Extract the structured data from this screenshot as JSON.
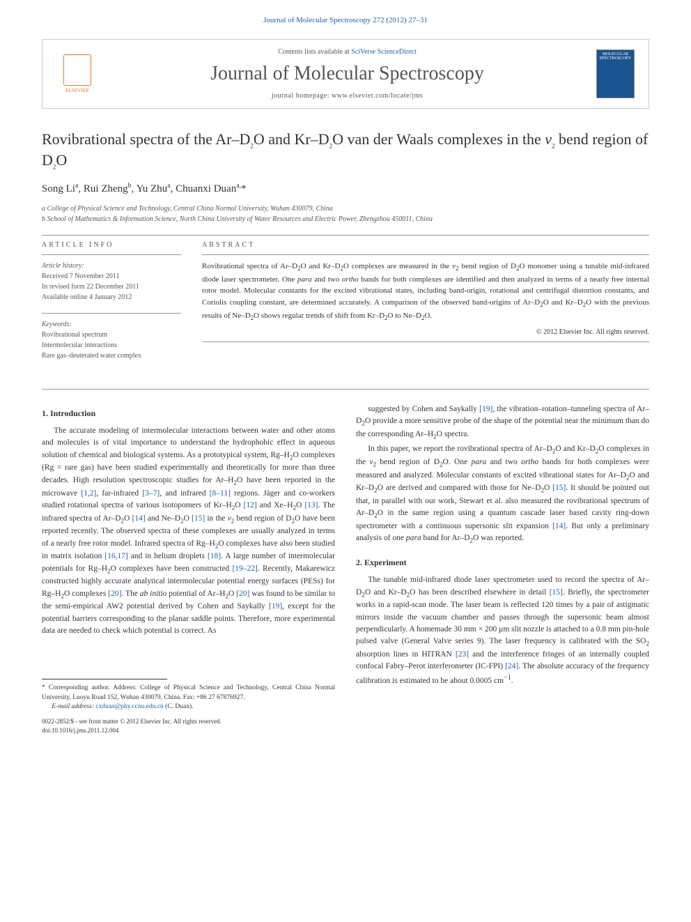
{
  "header": {
    "journal_ref": "Journal of Molecular Spectroscopy 272 (2012) 27–31",
    "contents_prefix": "Contents lists available at ",
    "contents_link": "SciVerse ScienceDirect",
    "journal_name": "Journal of Molecular Spectroscopy",
    "homepage_prefix": "journal homepage: ",
    "homepage_url": "www.elsevier.com/locate/jms",
    "elsevier_label": "ELSEVIER",
    "cover_text": "MOLECULAR SPECTROSCOPY"
  },
  "article": {
    "title_html": "Rovibrational spectra of the Ar–D<sub class='sub'>2</sub>O and Kr–D<sub class='sub'>2</sub>O van der Waals complexes in the <span class='ital'>v</span><sub class='sub'>2</sub> bend region of D<sub class='sub'>2</sub>O",
    "authors_html": "Song Li<sup class='sup'>a</sup>, Rui Zheng<sup class='sup'>b</sup>, Yu Zhu<sup class='sup'>a</sup>, Chuanxi Duan<sup class='sup'>a,</sup>*",
    "affil_a": "a College of Physical Science and Technology, Central China Normal University, Wuhan 430079, China",
    "affil_b": "b School of Mathematics & Information Science, North China University of Water Resources and Electric Power, Zhengzhou 450011, China"
  },
  "meta": {
    "info_heading": "ARTICLE INFO",
    "history_label": "Article history:",
    "received": "Received 7 November 2011",
    "revised": "In revised form 22 December 2011",
    "online": "Available online 4 January 2012",
    "keywords_label": "Keywords:",
    "kw1": "Rovibrational spectrum",
    "kw2": "Intermolecular interactions",
    "kw3": "Rare gas–deuterated water complex"
  },
  "abstract": {
    "heading": "ABSTRACT",
    "text_html": "Rovibrational spectra of Ar–D<sub class='sub'>2</sub>O and Kr–D<sub class='sub'>2</sub>O complexes are measured in the <span class='ital'>v</span><sub class='sub'>2</sub> bend region of D<sub class='sub'>2</sub>O monomer using a tunable mid-infrared diode laser spectrometer. One <span class='ital'>para</span> and two <span class='ital'>ortho</span> bands for both complexes are identified and then analyzed in terms of a nearly free internal rotor model. Molecular constants for the excited vibrational states, including band-origin, rotational and centrifugal distortion constants, and Coriolis coupling constant, are determined accurately. A comparison of the observed band-origins of Ar–D<sub class='sub'>2</sub>O and Kr–D<sub class='sub'>2</sub>O with the previous results of Ne–D<sub class='sub'>2</sub>O shows regular trends of shift from Kr–D<sub class='sub'>2</sub>O to Ne–D<sub class='sub'>2</sub>O.",
    "copyright": "© 2012 Elsevier Inc. All rights reserved."
  },
  "body": {
    "sec1_heading": "1. Introduction",
    "sec1_p1_html": "The accurate modeling of intermolecular interactions between water and other atoms and molecules is of vital importance to understand the hydrophobic effect in aqueous solution of chemical and biological systems. As a prototypical system, Rg–H<sub class='sub'>2</sub>O complexes (Rg = rare gas) have been studied experimentally and theoretically for more than three decades. High resolution spectroscopic studies for Ar–H<sub class='sub'>2</sub>O have been reported in the microwave <span class='ref'>[1,2]</span>, far-infrared <span class='ref'>[3–7]</span>, and infrared <span class='ref'>[8–11]</span> regions. Jäger and co-workers studied rotational spectra of various isotopomers of Kr–H<sub class='sub'>2</sub>O <span class='ref'>[12]</span> and Xe–H<sub class='sub'>2</sub>O <span class='ref'>[13]</span>. The infrared spectra of Ar–D<sub class='sub'>2</sub>O <span class='ref'>[14]</span> and Ne–D<sub class='sub'>2</sub>O <span class='ref'>[15]</span> in the <span class='ital'>v</span><sub class='sub'>2</sub> bend region of D<sub class='sub'>2</sub>O have been reported recently. The observed spectra of these complexes are usually analyzed in terms of a nearly free rotor model. Infrared spectra of Rg–H<sub class='sub'>2</sub>O complexes have also been studied in matrix isolation <span class='ref'>[16,17]</span> and in helium droplets <span class='ref'>[18]</span>. A large number of intermolecular potentials for Rg–H<sub class='sub'>2</sub>O complexes have been constructed <span class='ref'>[19–22]</span>. Recently, Makarewicz constructed highly accurate analytical intermolecular potential energy surfaces (PESs) for Rg–H<sub class='sub'>2</sub>O complexes <span class='ref'>[20]</span>. The <span class='ital'>ab initio</span> potential of Ar–H<sub class='sub'>2</sub>O <span class='ref'>[20]</span> was found to be similar to the semi-empirical AW2 potential derived by Cohen and Saykally <span class='ref'>[19]</span>, except for the potential barriers corresponding to the planar saddle points. Therefore, more experimental data are needed to check which potential is correct. As",
    "sec1_p2_html": "suggested by Cohen and Saykally <span class='ref'>[19]</span>, the vibration–rotation–tunneling spectra of Ar–D<sub class='sub'>2</sub>O provide a more sensitive probe of the shape of the potential near the minimum than do the corresponding Ar–H<sub class='sub'>2</sub>O spectra.",
    "sec1_p3_html": "In this paper, we report the rovibrational spectra of Ar–D<sub class='sub'>2</sub>O and Kr–D<sub class='sub'>2</sub>O complexes in the <span class='ital'>v</span><sub class='sub'>2</sub> bend region of D<sub class='sub'>2</sub>O. One <span class='ital'>para</span> and two <span class='ital'>ortho</span> bands for both complexes were measured and analyzed. Molecular constants of excited vibrational states for Ar–D<sub class='sub'>2</sub>O and Kr–D<sub class='sub'>2</sub>O are derived and compared with those for Ne–D<sub class='sub'>2</sub>O <span class='ref'>[15]</span>. It should be pointed out that, in parallel with our work, Stewart et al. also measured the rovibrational spectrum of Ar–D<sub class='sub'>2</sub>O in the same region using a quantum cascade laser based cavity ring-down spectrometer with a continuous supersonic slit expansion <span class='ref'>[14]</span>. But only a preliminary analysis of one <span class='ital'>para</span> band for Ar–D<sub class='sub'>2</sub>O was reported.",
    "sec2_heading": "2. Experiment",
    "sec2_p1_html": "The tunable mid-infrared diode laser spectrometer used to record the spectra of Ar–D<sub class='sub'>2</sub>O and Kr–D<sub class='sub'>2</sub>O has been described elsewhere in detail <span class='ref'>[15]</span>. Briefly, the spectrometer works in a rapid-scan mode. The laser beam is reflected 120 times by a pair of astigmatic mirrors inside the vacuum chamber and passes through the supersonic beam almost perpendicularly. A homemade 30 mm × 200 μm slit nozzle is attached to a 0.8 mm pin-hole pulsed valve (General Valve series 9). The laser frequency is calibrated with the SO<sub class='sub'>2</sub> absorption lines in HITRAN <span class='ref'>[23]</span> and the interference fringes of an internally coupled confocal Fabry–Perot interferometer (IC-FPI) <span class='ref'>[24]</span>. The absolute accuracy of the frequency calibration is estimated to be about 0.0005 cm<sup class='sup'>−1</sup>."
  },
  "footnotes": {
    "corr_html": "* Corresponding author. Address: College of Physical Science and Technology, Central China Normal University, Luoyu Road 152, Wuhan 430079, China. Fax: +86 27 67876927.",
    "email_label": "E-mail address:",
    "email": "cxduan@phy.ccnu.edu.cn",
    "email_suffix": "(C. Duan)."
  },
  "footer": {
    "issn": "0022-2852/$ - see front matter © 2012 Elsevier Inc. All rights reserved.",
    "doi": "doi:10.1016/j.jms.2011.12.004"
  },
  "colors": {
    "link": "#2060aa",
    "text": "#333333",
    "muted": "#555555",
    "elsevier_orange": "#e8742c",
    "cover_blue": "#1a5490"
  }
}
